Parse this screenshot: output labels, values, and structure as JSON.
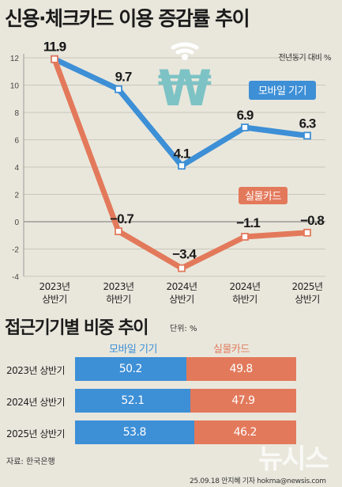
{
  "title": "신용·체크카드 이용 증감률 추이",
  "unit_note": "전년동기 대비 %",
  "chart_data": [
    {
      "type": "line",
      "categories": [
        "2023년 상반기",
        "2023년 하반기",
        "2024년 상반기",
        "2024년 하반기",
        "2025년 상반기"
      ],
      "category_lines": [
        [
          "2023년",
          "상반기"
        ],
        [
          "2023년",
          "하반기"
        ],
        [
          "2024년",
          "상반기"
        ],
        [
          "2024년",
          "하반기"
        ],
        [
          "2025년",
          "상반기"
        ]
      ],
      "series": [
        {
          "name": "모바일 기기",
          "values": [
            11.9,
            9.7,
            4.1,
            6.9,
            6.3
          ],
          "labels": [
            "11.9",
            "9.7",
            "4.1",
            "6.9",
            "6.3"
          ],
          "color": "#3d8fd6"
        },
        {
          "name": "실물카드",
          "values": [
            11.9,
            -0.7,
            -3.4,
            -1.1,
            -0.8
          ],
          "labels": [
            "11.9",
            "−0.7",
            "−3.4",
            "−1.1",
            "−0.8"
          ],
          "color": "#e3795b"
        }
      ],
      "ylim": [
        -4,
        12
      ],
      "yticks": [
        -4,
        -2,
        0,
        2,
        4,
        6,
        8,
        10,
        12
      ],
      "grid": true
    },
    {
      "type": "bar",
      "stacked": true,
      "orientation": "horizontal",
      "title": "접근기기별 비중 추이",
      "unit": "단위: %",
      "categories": [
        "2023년 상반기",
        "2024년 상반기",
        "2025년 상반기"
      ],
      "series": [
        {
          "name": "모바일 기기",
          "values": [
            50.2,
            52.1,
            53.8
          ],
          "color": "#3d8fd6"
        },
        {
          "name": "실물카드",
          "values": [
            49.8,
            47.9,
            46.2
          ],
          "color": "#e3795b"
        }
      ]
    }
  ],
  "source": "자료: 한국은행",
  "credit": "25.09.18 안지혜 기자 hokma@newsis.com",
  "watermark": "뉴시스",
  "icon": "won-wifi-icon"
}
